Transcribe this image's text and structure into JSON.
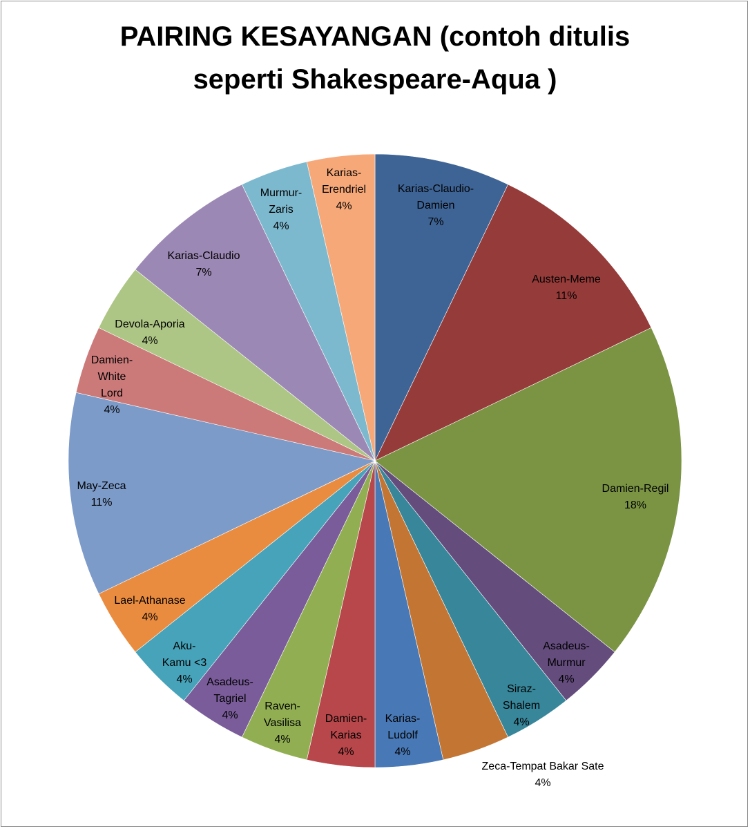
{
  "chart_data": {
    "type": "pie",
    "title_lines": [
      "PAIRING KESAYANGAN (contoh ditulis",
      "seperti Shakespeare-Aqua )"
    ],
    "slices": [
      {
        "name": "Karias-Claudio-Damien",
        "label_lines": [
          "Karias-Claudio-",
          "Damien"
        ],
        "value": 2,
        "percent": "7%",
        "color": "#3E6496"
      },
      {
        "name": "Austen-Meme",
        "label_lines": [
          "Austen-Meme"
        ],
        "value": 3,
        "percent": "11%",
        "color": "#953B39"
      },
      {
        "name": "Damien-Regil",
        "label_lines": [
          "Damien-Regil"
        ],
        "value": 5,
        "percent": "18%",
        "color": "#7A9444"
      },
      {
        "name": "Asadeus-Murmur",
        "label_lines": [
          "Asadeus-",
          "Murmur"
        ],
        "value": 1,
        "percent": "4%",
        "color": "#644C7D"
      },
      {
        "name": "Siraz-Shalem",
        "label_lines": [
          "Siraz-",
          "Shalem"
        ],
        "value": 1,
        "percent": "4%",
        "color": "#37869A"
      },
      {
        "name": "Zeca-Tempat Bakar Sate",
        "label_lines": [
          "Zeca-Tempat Bakar Sate"
        ],
        "value": 1,
        "percent": "4%",
        "color": "#C37533"
      },
      {
        "name": "Karias-Ludolf",
        "label_lines": [
          "Karias-",
          "Ludolf"
        ],
        "value": 1,
        "percent": "4%",
        "color": "#4878B5"
      },
      {
        "name": "Damien-Karias",
        "label_lines": [
          "Damien-",
          "Karias"
        ],
        "value": 1,
        "percent": "4%",
        "color": "#B7474A"
      },
      {
        "name": "Raven-Vasilisa",
        "label_lines": [
          "Raven-",
          "Vasilisa"
        ],
        "value": 1,
        "percent": "4%",
        "color": "#91AF52"
      },
      {
        "name": "Asadeus-Tagriel",
        "label_lines": [
          "Asadeus-",
          "Tagriel"
        ],
        "value": 1,
        "percent": "4%",
        "color": "#795C99"
      },
      {
        "name": "Aku-Kamu <3",
        "label_lines": [
          "Aku-",
          "Kamu <3"
        ],
        "value": 1,
        "percent": "4%",
        "color": "#46A3BA"
      },
      {
        "name": "Lael-Athanase",
        "label_lines": [
          "Lael-Athanase"
        ],
        "value": 1,
        "percent": "4%",
        "color": "#EA8C3F"
      },
      {
        "name": "May-Zeca",
        "label_lines": [
          "May-Zeca"
        ],
        "value": 3,
        "percent": "11%",
        "color": "#7D9BC9"
      },
      {
        "name": "Damien-White Lord",
        "label_lines": [
          "Damien-",
          "White",
          "Lord"
        ],
        "value": 1,
        "percent": "4%",
        "color": "#CB7A79"
      },
      {
        "name": "Devola-Aporia",
        "label_lines": [
          "Devola-Aporia"
        ],
        "value": 1,
        "percent": "4%",
        "color": "#ADC685"
      },
      {
        "name": "Karias-Claudio",
        "label_lines": [
          "Karias-Claudio"
        ],
        "value": 2,
        "percent": "7%",
        "color": "#9C88B4"
      },
      {
        "name": "Murmur-Zaris",
        "label_lines": [
          "Murmur-",
          "Zaris"
        ],
        "value": 1,
        "percent": "4%",
        "color": "#7DB9CE"
      },
      {
        "name": "Karias-Erendriel",
        "label_lines": [
          "Karias-",
          "Erendriel"
        ],
        "value": 1,
        "percent": "4%",
        "color": "#F7A878"
      }
    ]
  }
}
